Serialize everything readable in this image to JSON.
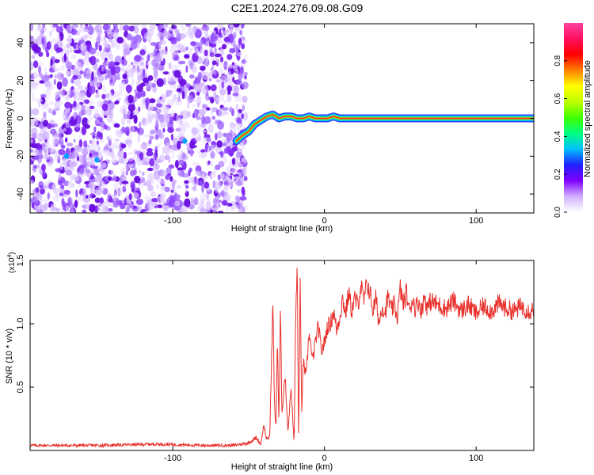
{
  "chart_data": [
    {
      "type": "heatmap",
      "title": "C2E1.2024.276.09.08.G09",
      "xlabel": "Height of straight line (km)",
      "ylabel": "Frequency (Hz)",
      "xlim": [
        -194,
        138
      ],
      "ylim": [
        -50,
        50
      ],
      "x_ticks": [
        -100,
        0,
        100
      ],
      "x_tick_labels": [
        "-100",
        "0",
        "100"
      ],
      "y_ticks": [
        -40,
        -20,
        0,
        20,
        40
      ],
      "y_tick_labels": [
        "-40",
        "-20",
        "0",
        "20",
        "40"
      ],
      "noise_region_x": [
        -194,
        -55
      ],
      "ridge": {
        "x": [
          -58,
          -54,
          -50,
          -46,
          -42,
          -38,
          -34,
          -30,
          -26,
          -22,
          -18,
          -14,
          -10,
          -6,
          -2,
          2,
          6,
          10,
          138
        ],
        "y": [
          -12,
          -9,
          -7,
          -3,
          -1,
          1,
          2,
          0,
          1,
          1,
          0,
          0,
          1,
          0,
          0,
          0,
          1,
          0,
          0
        ]
      },
      "colorbar": {
        "label": "Normalized spectral amplitude",
        "range": [
          0,
          1
        ],
        "ticks": [
          0.0,
          0.2,
          0.4,
          0.6,
          0.8
        ],
        "tick_labels": [
          "0.0",
          "0.2",
          "0.4",
          "0.6",
          "0.8"
        ],
        "colors": [
          "#ffffff",
          "#d0b0ff",
          "#8000ff",
          "#2020ff",
          "#00c0ff",
          "#00ff80",
          "#40ff00",
          "#c0ff00",
          "#ffff00",
          "#ff8000",
          "#ff0000",
          "#ff1060",
          "#ff40a0"
        ]
      }
    },
    {
      "type": "line",
      "xlabel": "Height of straight line (km)",
      "ylabel": "SNR (10 * v/v)",
      "y_multiplier_label": "(x10",
      "y_multiplier_exp": "4",
      "y_multiplier_close": ")",
      "xlim": [
        -194,
        138
      ],
      "ylim": [
        0,
        1.5
      ],
      "x_ticks": [
        -100,
        0,
        100
      ],
      "x_tick_labels": [
        "-100",
        "0",
        "100"
      ],
      "y_ticks": [
        0.5,
        1.0,
        1.5
      ],
      "y_tick_labels": [
        "0.5",
        "1.0",
        "1.5"
      ],
      "line_color": "#e8302c",
      "series": [
        {
          "x": [
            -194,
            -150,
            -110,
            -80,
            -60,
            -50,
            -45,
            -42,
            -40,
            -38,
            -36,
            -34,
            -33,
            -32,
            -31,
            -30,
            -29,
            -28,
            -26,
            -24,
            -22,
            -20,
            -19,
            -18,
            -17,
            -16,
            -15,
            -14,
            -12,
            -10,
            -8,
            -6,
            -4,
            -2,
            0,
            2,
            4,
            6,
            8,
            10,
            12,
            14,
            16,
            18,
            20,
            22,
            24,
            26,
            28,
            30,
            32,
            34,
            36,
            38,
            40,
            42,
            44,
            46,
            48,
            50,
            52,
            54,
            56,
            58,
            60,
            62,
            64,
            66,
            68,
            70,
            75,
            80,
            85,
            90,
            95,
            100,
            105,
            110,
            115,
            120,
            125,
            130,
            135,
            138
          ],
          "y": [
            0.04,
            0.04,
            0.05,
            0.04,
            0.04,
            0.06,
            0.1,
            0.05,
            0.2,
            0.08,
            0.12,
            1.18,
            0.4,
            0.15,
            0.9,
            0.2,
            1.1,
            0.3,
            0.6,
            0.15,
            0.5,
            0.05,
            1.02,
            1.5,
            0.08,
            1.3,
            0.3,
            0.7,
            0.58,
            0.95,
            0.7,
            0.85,
            0.98,
            0.78,
            0.85,
            0.98,
            1.0,
            1.1,
            0.95,
            1.05,
            1.2,
            1.08,
            1.25,
            1.1,
            1.2,
            1.15,
            1.3,
            1.18,
            1.32,
            1.25,
            1.1,
            1.2,
            1.0,
            1.15,
            1.08,
            1.22,
            1.1,
            1.15,
            1.05,
            1.28,
            1.15,
            1.25,
            1.1,
            1.2,
            1.12,
            1.18,
            1.1,
            1.22,
            1.12,
            1.18,
            1.15,
            1.12,
            1.18,
            1.1,
            1.15,
            1.08,
            1.14,
            1.1,
            1.16,
            1.12,
            1.1,
            1.14,
            1.1,
            1.12
          ]
        }
      ]
    }
  ]
}
